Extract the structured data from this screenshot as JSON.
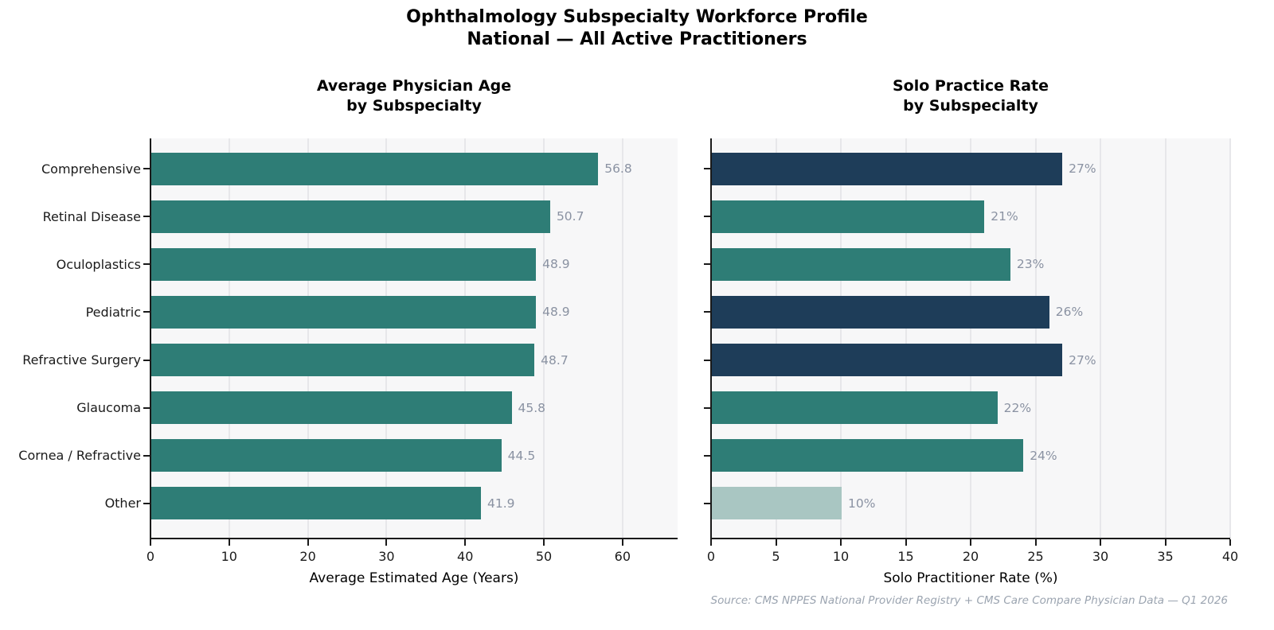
{
  "figure": {
    "title_line1": "Ophthalmology Subspecialty Workforce Profile",
    "title_line2": "National — All Active Practitioners",
    "source_note": "Source: CMS NPPES National Provider Registry + CMS Care Compare Physician Data — Q1 2026"
  },
  "colors": {
    "teal": "#2e7d76",
    "navy": "#1e3d59",
    "muted_teal": "#a9c6c2",
    "value_label_gray": "#8a92a2",
    "plot_background": "#f7f7f8",
    "gridline": "#e7e7ea",
    "spine": "#1a1a1a",
    "source_text": "#9ba4b0"
  },
  "chart_data": [
    {
      "type": "bar",
      "orientation": "horizontal",
      "title_lines": [
        "Average Physician Age",
        "by Subspecialty"
      ],
      "categories": [
        "Comprehensive",
        "Retinal Disease",
        "Oculoplastics",
        "Pediatric",
        "Refractive Surgery",
        "Glaucoma",
        "Cornea / Refractive",
        "Other"
      ],
      "values": [
        56.8,
        50.7,
        48.9,
        48.9,
        48.7,
        45.8,
        44.5,
        41.9
      ],
      "value_labels": [
        "56.8",
        "50.7",
        "48.9",
        "48.9",
        "48.7",
        "45.8",
        "44.5",
        "41.9"
      ],
      "bar_colors": [
        "#2e7d76",
        "#2e7d76",
        "#2e7d76",
        "#2e7d76",
        "#2e7d76",
        "#2e7d76",
        "#2e7d76",
        "#2e7d76"
      ],
      "xlabel": "Average Estimated Age (Years)",
      "xlim": [
        0,
        67
      ],
      "xticks": [
        0,
        10,
        20,
        30,
        40,
        50,
        60
      ],
      "grid": true,
      "show_category_labels": true
    },
    {
      "type": "bar",
      "orientation": "horizontal",
      "title_lines": [
        "Solo Practice Rate",
        "by Subspecialty"
      ],
      "categories": [
        "Comprehensive",
        "Retinal Disease",
        "Oculoplastics",
        "Pediatric",
        "Refractive Surgery",
        "Glaucoma",
        "Cornea / Refractive",
        "Other"
      ],
      "values": [
        27,
        21,
        23,
        26,
        27,
        22,
        24,
        10
      ],
      "value_labels": [
        "27%",
        "21%",
        "23%",
        "26%",
        "27%",
        "22%",
        "24%",
        "10%"
      ],
      "bar_colors": [
        "#1e3d59",
        "#2e7d76",
        "#2e7d76",
        "#1e3d59",
        "#1e3d59",
        "#2e7d76",
        "#2e7d76",
        "#a9c6c2"
      ],
      "xlabel": "Solo Practitioner Rate (%)",
      "xlim": [
        0,
        40
      ],
      "xticks": [
        0,
        5,
        10,
        15,
        20,
        25,
        30,
        35,
        40
      ],
      "grid": true,
      "show_category_labels": false
    }
  ]
}
